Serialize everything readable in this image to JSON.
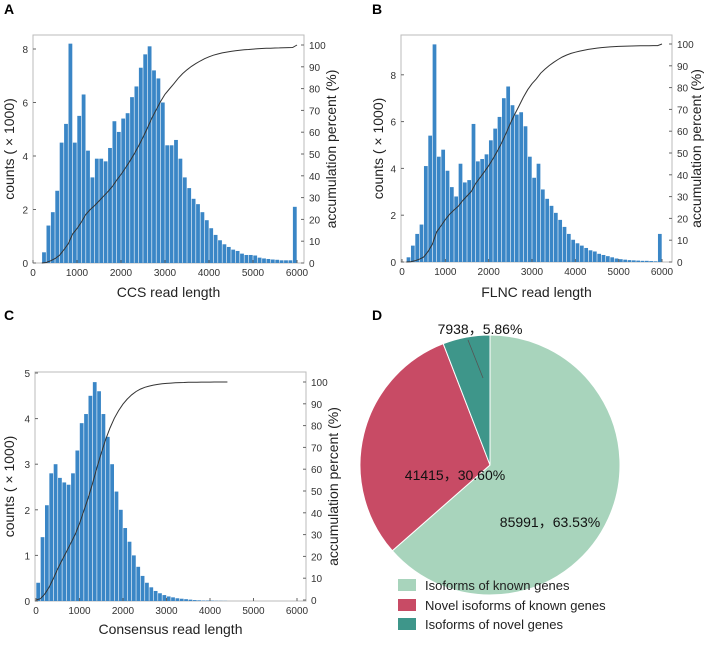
{
  "chart_data": [
    {
      "panel": "A",
      "type": "bar",
      "xlabel": "CCS read length",
      "ylabel": "counts ( × 1000)",
      "y2label": "accumulation percent (%)",
      "xlim": [
        0,
        6000
      ],
      "xticks": [
        0,
        1000,
        2000,
        3000,
        4000,
        5000,
        6000
      ],
      "yticks": [
        0,
        2,
        4,
        6,
        8
      ],
      "y2ticks": [
        0,
        10,
        20,
        30,
        40,
        50,
        60,
        70,
        80,
        90,
        100
      ],
      "bin_width": 100,
      "x": [
        250,
        350,
        450,
        550,
        650,
        750,
        850,
        950,
        1050,
        1150,
        1250,
        1350,
        1450,
        1550,
        1650,
        1750,
        1850,
        1950,
        2050,
        2150,
        2250,
        2350,
        2450,
        2550,
        2650,
        2750,
        2850,
        2950,
        3050,
        3150,
        3250,
        3350,
        3450,
        3550,
        3650,
        3750,
        3850,
        3950,
        4050,
        4150,
        4250,
        4350,
        4450,
        4550,
        4650,
        4750,
        4850,
        4950,
        5050,
        5150,
        5250,
        5350,
        5450,
        5550,
        5650,
        5750,
        5850,
        5950
      ],
      "values": [
        0.4,
        1.4,
        1.9,
        2.7,
        4.5,
        5.2,
        8.2,
        4.5,
        5.5,
        6.3,
        4.2,
        3.2,
        3.9,
        3.9,
        3.8,
        4.3,
        5.3,
        4.9,
        5.4,
        5.6,
        6.2,
        6.6,
        7.3,
        7.8,
        8.1,
        7.2,
        6.9,
        6.0,
        4.4,
        4.4,
        4.6,
        3.9,
        3.2,
        2.8,
        2.4,
        2.2,
        1.9,
        1.6,
        1.3,
        1.05,
        0.85,
        0.7,
        0.6,
        0.5,
        0.45,
        0.35,
        0.3,
        0.3,
        0.28,
        0.2,
        0.17,
        0.15,
        0.13,
        0.12,
        0.1,
        0.1,
        0.1,
        2.1
      ],
      "series": [
        {
          "name": "counts",
          "kind": "bar"
        },
        {
          "name": "accumulation percent",
          "kind": "line",
          "derived": "cumulative"
        }
      ]
    },
    {
      "panel": "B",
      "type": "bar",
      "xlabel": "FLNC read length",
      "ylabel": "counts ( × 1000)",
      "y2label": "accumulation percent (%)",
      "xlim": [
        0,
        6000
      ],
      "xticks": [
        0,
        1000,
        2000,
        3000,
        4000,
        5000,
        6000
      ],
      "yticks": [
        0,
        2,
        4,
        6,
        8
      ],
      "y2ticks": [
        0,
        10,
        20,
        30,
        40,
        50,
        60,
        70,
        80,
        90,
        100
      ],
      "bin_width": 100,
      "x": [
        150,
        250,
        350,
        450,
        550,
        650,
        750,
        850,
        950,
        1050,
        1150,
        1250,
        1350,
        1450,
        1550,
        1650,
        1750,
        1850,
        1950,
        2050,
        2150,
        2250,
        2350,
        2450,
        2550,
        2650,
        2750,
        2850,
        2950,
        3050,
        3150,
        3250,
        3350,
        3450,
        3550,
        3650,
        3750,
        3850,
        3950,
        4050,
        4150,
        4250,
        4350,
        4450,
        4550,
        4650,
        4750,
        4850,
        4950,
        5050,
        5150,
        5250,
        5350,
        5450,
        5550,
        5650,
        5750,
        5850,
        5950
      ],
      "values": [
        0.2,
        0.7,
        1.2,
        1.6,
        4.1,
        5.4,
        9.3,
        4.5,
        4.8,
        3.9,
        3.2,
        2.8,
        4.2,
        3.4,
        3.5,
        5.9,
        4.3,
        4.4,
        4.6,
        5.2,
        5.7,
        6.2,
        7.0,
        7.5,
        6.7,
        6.3,
        6.4,
        5.8,
        4.5,
        3.6,
        4.2,
        3.1,
        2.7,
        2.4,
        2.1,
        1.8,
        1.5,
        1.2,
        0.95,
        0.8,
        0.7,
        0.6,
        0.5,
        0.45,
        0.35,
        0.3,
        0.25,
        0.2,
        0.15,
        0.12,
        0.1,
        0.08,
        0.07,
        0.06,
        0.05,
        0.05,
        0.04,
        0.03,
        1.2
      ],
      "series": [
        {
          "name": "counts",
          "kind": "bar"
        },
        {
          "name": "accumulation percent",
          "kind": "line",
          "derived": "cumulative"
        }
      ]
    },
    {
      "panel": "C",
      "type": "bar",
      "xlabel": "Consensus read length",
      "ylabel": "counts ( × 1000)",
      "y2label": "accumulation percent (%)",
      "xlim": [
        0,
        6000
      ],
      "xticks": [
        0,
        1000,
        2000,
        3000,
        4000,
        5000,
        6000
      ],
      "yticks": [
        0,
        1,
        2,
        3,
        4,
        5
      ],
      "y2ticks": [
        0,
        10,
        20,
        30,
        40,
        50,
        60,
        70,
        80,
        90,
        100
      ],
      "bin_width": 100,
      "x": [
        50,
        150,
        250,
        350,
        450,
        550,
        650,
        750,
        850,
        950,
        1050,
        1150,
        1250,
        1350,
        1450,
        1550,
        1650,
        1750,
        1850,
        1950,
        2050,
        2150,
        2250,
        2350,
        2450,
        2550,
        2650,
        2750,
        2850,
        2950,
        3050,
        3150,
        3250,
        3350,
        3450,
        3550,
        3650,
        3750,
        3850,
        3950,
        4050,
        4150,
        4250,
        4350
      ],
      "values": [
        0.4,
        1.4,
        2.1,
        2.8,
        3.0,
        2.7,
        2.6,
        2.55,
        2.8,
        3.3,
        3.9,
        4.1,
        4.5,
        4.8,
        4.6,
        4.1,
        3.6,
        3.0,
        2.4,
        2.0,
        1.6,
        1.3,
        1.0,
        0.75,
        0.55,
        0.4,
        0.3,
        0.22,
        0.17,
        0.13,
        0.1,
        0.08,
        0.06,
        0.05,
        0.04,
        0.03,
        0.02,
        0.015,
        0.01,
        0.01,
        0.008,
        0.005,
        0.004,
        0.003
      ],
      "series": [
        {
          "name": "counts",
          "kind": "bar"
        },
        {
          "name": "accumulation percent",
          "kind": "line",
          "derived": "cumulative"
        }
      ]
    },
    {
      "panel": "D",
      "type": "pie",
      "slices": [
        {
          "label": "Isoforms of known genes",
          "count": 85991,
          "percent": 63.53,
          "text": "85991，63.53%",
          "color": "#a8d4bc"
        },
        {
          "label": "Novel isoforms of known genes",
          "count": 41415,
          "percent": 30.6,
          "text": "41415，30.60%",
          "color": "#c84b65"
        },
        {
          "label": "Isoforms of novel genes",
          "count": 7938,
          "percent": 5.86,
          "text": "7938，5.86%",
          "color": "#3e968a"
        }
      ]
    }
  ],
  "colors": {
    "bar": "#3a86c6",
    "line": "#333333",
    "frame": "#bbbbbb"
  }
}
